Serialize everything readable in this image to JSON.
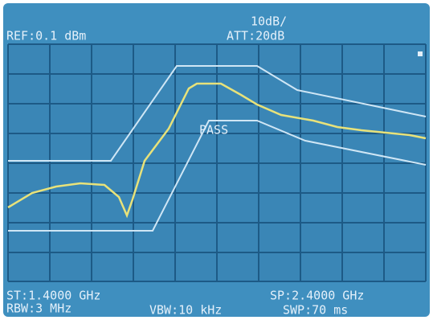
{
  "header": {
    "ref": "REF:0.1 dBm",
    "scale": "10dB/",
    "att": "ATT:20dB"
  },
  "status": "PASS",
  "footer": {
    "start": "ST:1.4000 GHz",
    "stop": "SP:2.4000 GHz",
    "rbw": "RBW:3 MHz",
    "vbw": "VBW:10 kHz",
    "swp": "SWP:70 ms"
  }
}
